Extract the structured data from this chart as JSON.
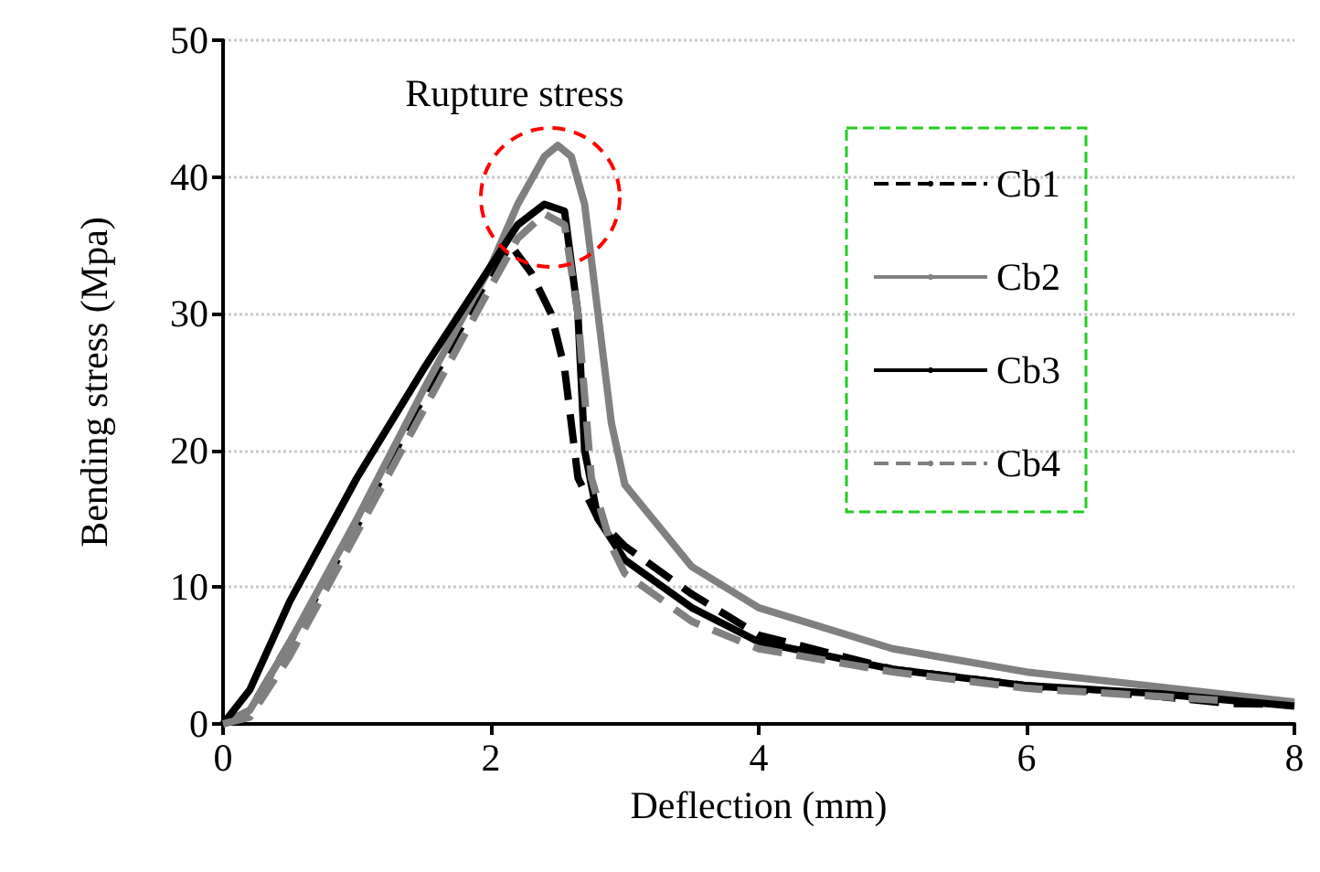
{
  "chart_data": {
    "type": "line",
    "xlabel": "Deflection (mm)",
    "ylabel": "Bending stress (Mpa)",
    "xlim": [
      0,
      8
    ],
    "xticks": [
      0,
      2,
      4,
      6,
      8
    ],
    "ylim": [
      0,
      50
    ],
    "yticks": [
      0,
      10,
      20,
      30,
      40,
      50
    ],
    "grid": "y",
    "legend": "top right",
    "marker": "none",
    "annotations": [
      {
        "text": "Rupture stress",
        "x": 2.45,
        "y": 38.5
      }
    ],
    "series": [
      {
        "name": "Cb1",
        "color": "#000000",
        "line_style": "dashed",
        "x": [
          0,
          0.2,
          0.5,
          1,
          1.5,
          2.0,
          2.15,
          2.3,
          2.45,
          2.55,
          2.65,
          2.8,
          3,
          3.5,
          4,
          5,
          6,
          7,
          7.5,
          8
        ],
        "values": [
          0,
          1,
          6,
          14.5,
          24,
          33,
          35,
          33,
          30,
          26,
          18,
          15,
          13,
          9.5,
          6.5,
          4,
          2.8,
          2,
          1.5,
          1.4
        ]
      },
      {
        "name": "Cb2",
        "color": "#808080",
        "line_style": "solid",
        "x": [
          0,
          0.2,
          0.5,
          1,
          1.5,
          2.0,
          2.2,
          2.4,
          2.5,
          2.6,
          2.7,
          2.8,
          2.9,
          3,
          3.5,
          4,
          5,
          6,
          7,
          8
        ],
        "values": [
          0,
          1,
          6,
          15,
          24.5,
          33.5,
          38,
          41.5,
          42.3,
          41.5,
          38,
          30,
          22,
          17.5,
          11.5,
          8.5,
          5.5,
          3.8,
          2.7,
          1.6
        ]
      },
      {
        "name": "Cb3",
        "color": "#000000",
        "line_style": "solid",
        "x": [
          0,
          0.2,
          0.5,
          1,
          1.5,
          2.0,
          2.2,
          2.4,
          2.55,
          2.65,
          2.7,
          2.8,
          3,
          3.5,
          4,
          5,
          6,
          7,
          8
        ],
        "values": [
          0,
          2.5,
          9,
          18,
          26,
          33.5,
          36.5,
          38,
          37.5,
          30,
          20,
          15,
          12,
          8.5,
          6,
          4,
          2.8,
          2.2,
          1.3
        ]
      },
      {
        "name": "Cb4",
        "color": "#808080",
        "line_style": "dashed",
        "x": [
          0,
          0.2,
          0.5,
          1,
          1.5,
          2.0,
          2.2,
          2.4,
          2.55,
          2.65,
          2.75,
          2.9,
          3,
          3.5,
          4,
          5,
          6,
          7,
          7.5
        ],
        "values": [
          0,
          0.5,
          5,
          14,
          23,
          32,
          35.5,
          37.3,
          36.5,
          30,
          18,
          13,
          11,
          7.5,
          5.5,
          3.8,
          2.6,
          2,
          1.7
        ]
      }
    ]
  }
}
